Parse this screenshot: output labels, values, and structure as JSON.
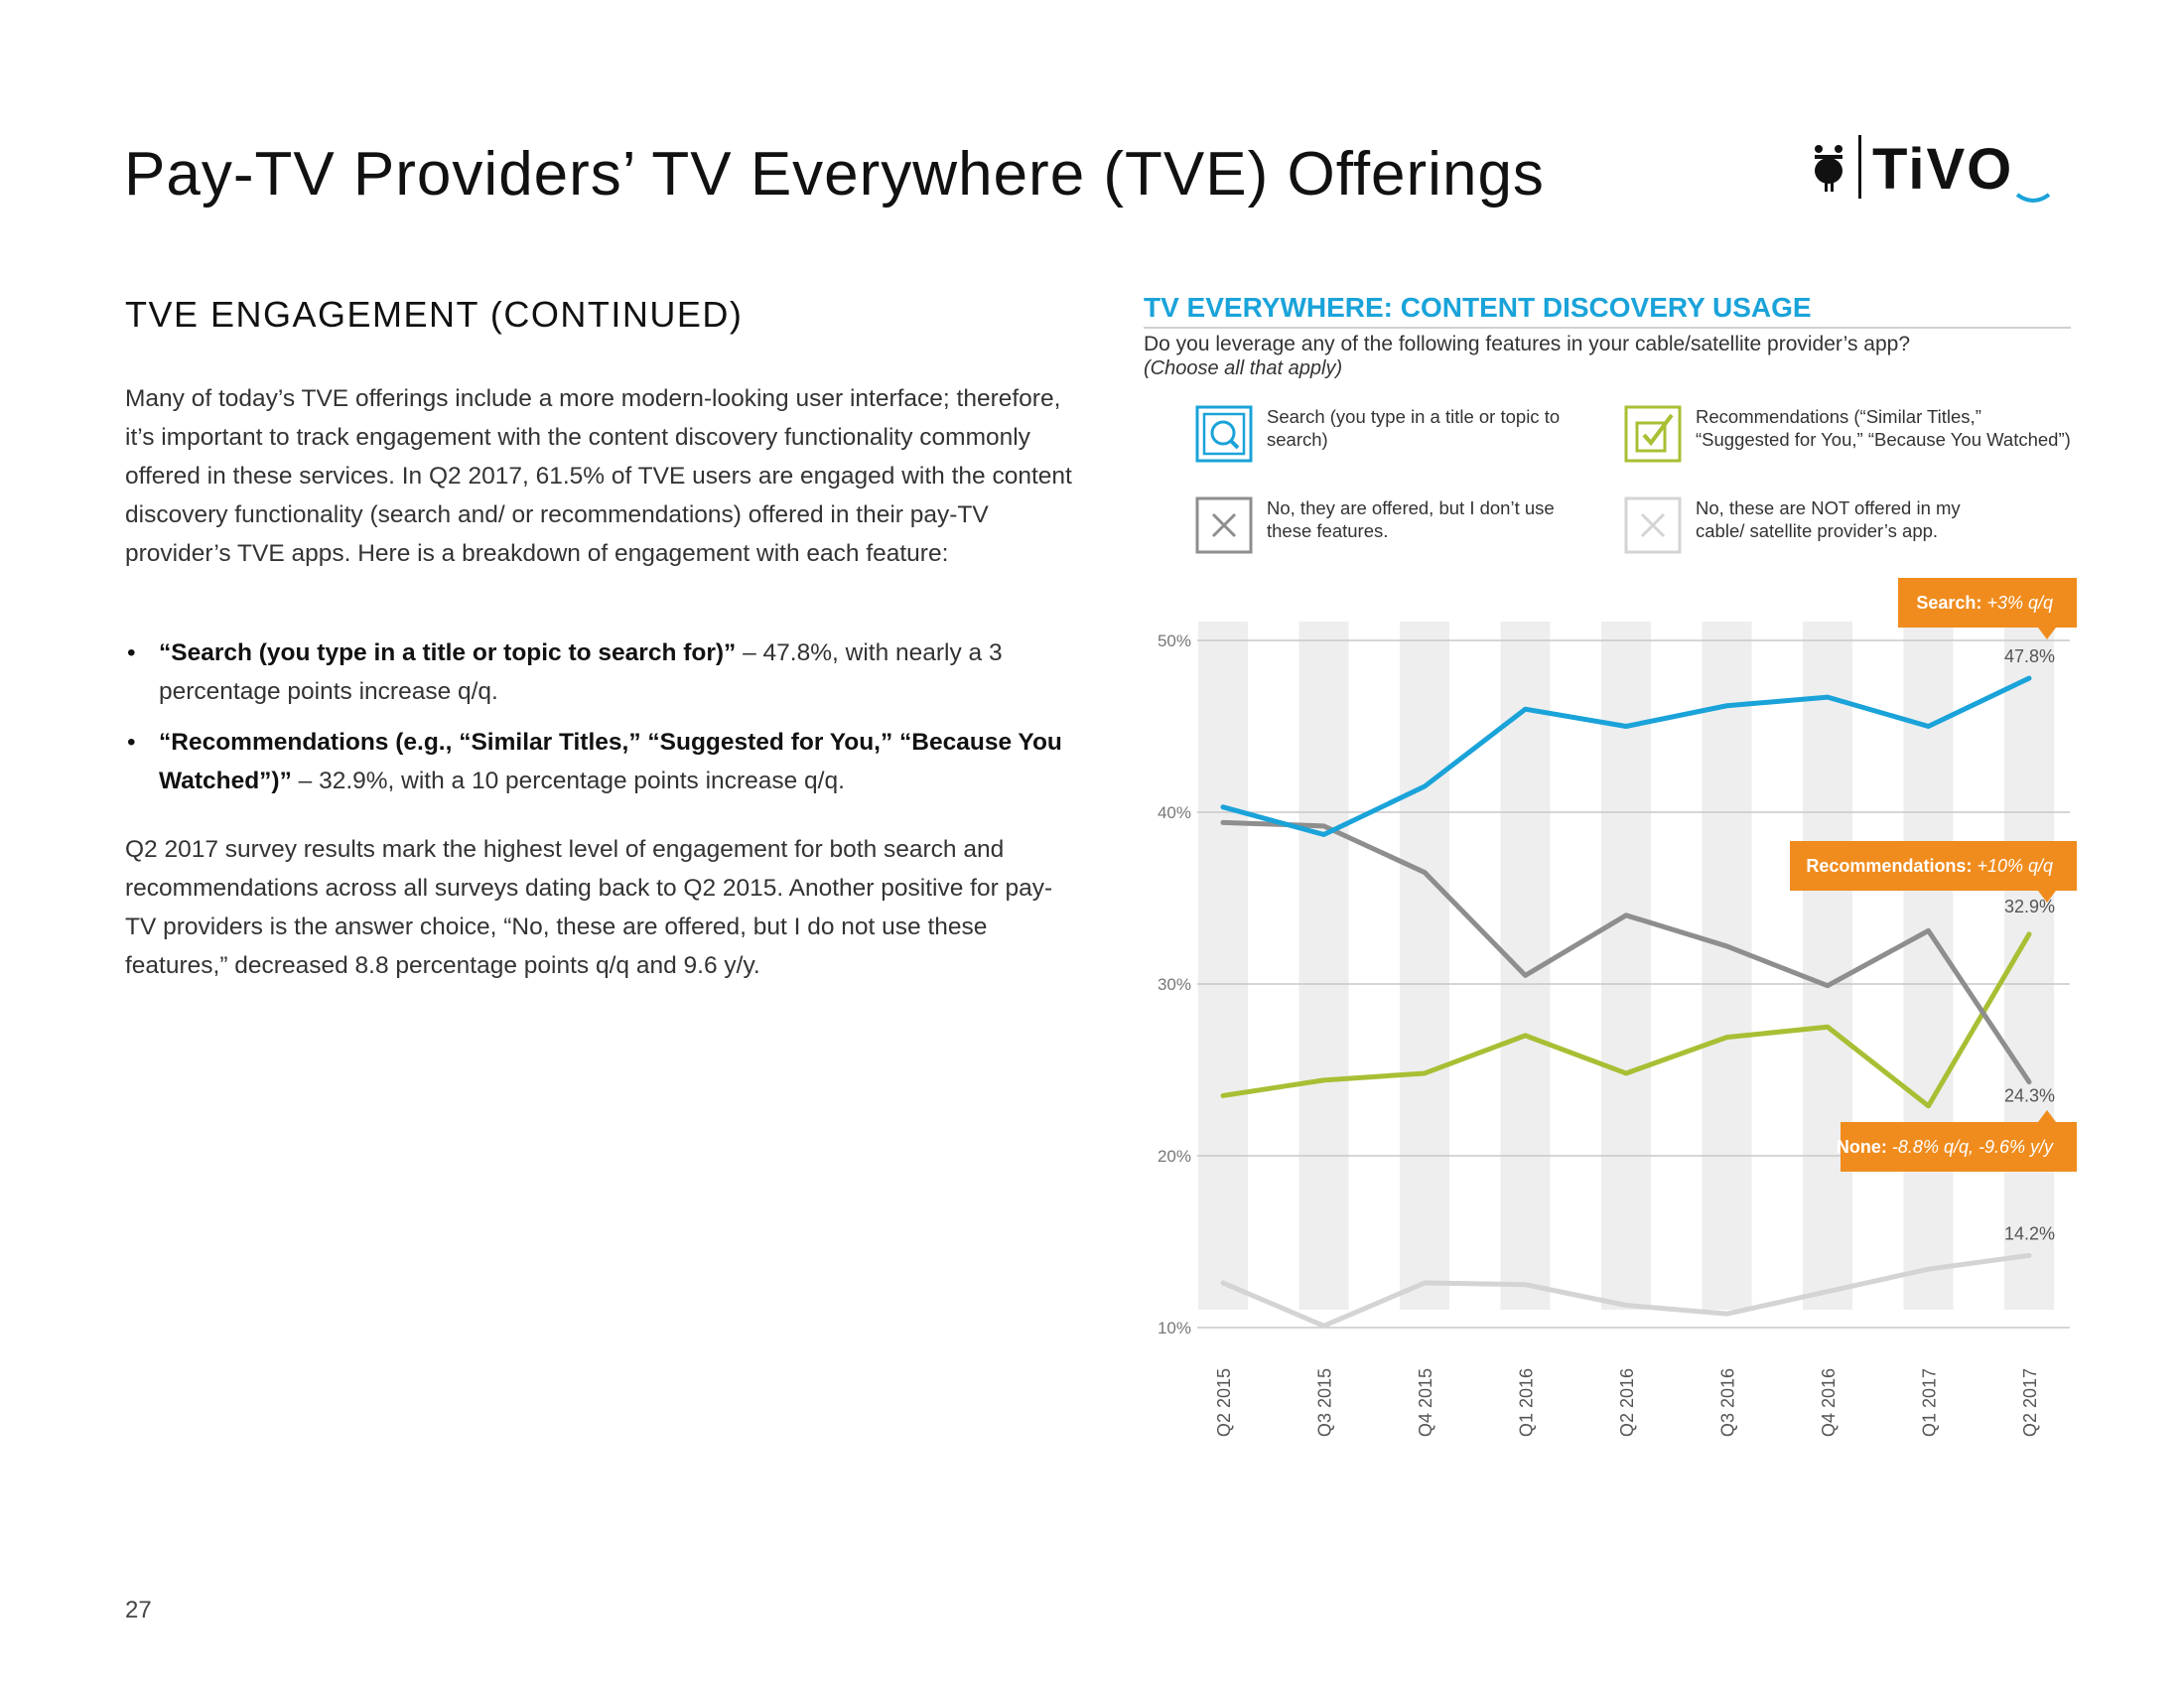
{
  "page": {
    "title": "Pay-TV Providers’ TV Everywhere (TVE) Offerings",
    "page_number": "27",
    "logo_text": "TiVO"
  },
  "left": {
    "section_title": "TVE ENGAGEMENT (CONTINUED)",
    "intro": "Many of today’s TVE offerings include a more modern-looking user interface; therefore, it’s important to track engagement with the content discovery functionality commonly offered in these services. In Q2 2017, 61.5% of TVE users are engaged with the content discovery functionality (search and/ or recommendations) offered in their pay-TV provider’s TVE apps. Here is a breakdown of engagement with each feature:",
    "bullets": [
      {
        "bold": "“Search (you type in a title or topic to search for)”",
        "text": " – 47.8%, with nearly a 3 percentage points increase q/q."
      },
      {
        "bold": "“Recommendations (e.g., “Similar Titles,” “Suggested for You,” “Because You Watched”)”",
        "text": " – 32.9%, with a 10 percentage points increase q/q."
      }
    ],
    "closing": "Q2 2017 survey results mark the highest level of engagement for both search and recommendations across all surveys dating back to Q2 2015. Another positive for pay-TV providers is the answer choice, “No, these are offered, but I do not use these features,” decreased 8.8 percentage points q/q and 9.6 y/y."
  },
  "legend": [
    {
      "key": "search",
      "icon": "search-icon",
      "text": "Search (you type in a title or topic to search)"
    },
    {
      "key": "recommendations",
      "icon": "checkbox-icon",
      "text": "Recommendations (“Similar Titles,” “Suggested for You,” “Because You Watched”)"
    },
    {
      "key": "none",
      "icon": "x-box-icon",
      "text": "No, they are offered, but I don’t use these features."
    },
    {
      "key": "not_offered",
      "icon": "x-box-light-icon",
      "text": "No, these are NOT offered in my cable/ satellite provider’s app."
    }
  ],
  "colors": {
    "search": "#1aa3d9",
    "recommendations": "#a8bf34",
    "none": "#8e8e8e",
    "not_offered": "#d4d4d4",
    "callout": "#f08c1e",
    "band": "#eeeeee",
    "grid": "#c8c8c8"
  },
  "chart_data": {
    "type": "line",
    "title": "TV EVERYWHERE: CONTENT DISCOVERY USAGE",
    "question": "Do you leverage any of the following features in your cable/satellite provider’s app?",
    "note": "(Choose all that apply)",
    "categories": [
      "Q2 2015",
      "Q3 2015",
      "Q4 2015",
      "Q1 2016",
      "Q2 2016",
      "Q3 2016",
      "Q4 2016",
      "Q1 2017",
      "Q2 2017"
    ],
    "ylim": [
      10,
      50
    ],
    "yticks": [
      10,
      20,
      30,
      40,
      50
    ],
    "ytick_labels": [
      "10%",
      "20%",
      "30%",
      "40%",
      "50%"
    ],
    "series": [
      {
        "key": "search",
        "name": "Search",
        "values": [
          40.3,
          38.7,
          41.5,
          46.0,
          45.0,
          46.2,
          46.7,
          45.0,
          47.8
        ],
        "end_label": "47.8%"
      },
      {
        "key": "none",
        "name": "No, they are offered, but I don’t use these features",
        "values": [
          39.4,
          39.2,
          36.5,
          30.5,
          34.0,
          32.2,
          29.9,
          33.1,
          24.3
        ],
        "end_label": "24.3%"
      },
      {
        "key": "recommendations",
        "name": "Recommendations",
        "values": [
          23.5,
          24.4,
          24.8,
          27.0,
          24.8,
          26.9,
          27.5,
          22.9,
          32.9
        ],
        "end_label": "32.9%"
      },
      {
        "key": "not_offered",
        "name": "Not offered",
        "values": [
          12.6,
          10.1,
          12.6,
          12.5,
          11.3,
          10.8,
          12.1,
          13.4,
          14.2
        ],
        "end_label": "14.2%"
      }
    ],
    "callouts": [
      {
        "series": "search",
        "label": "Search:",
        "detail": "+3% q/q"
      },
      {
        "series": "recommendations",
        "label": "Recommendations:",
        "detail": "+10% q/q"
      },
      {
        "series": "none",
        "label": "None:",
        "detail": "-8.8% q/q, -9.6% y/y"
      }
    ]
  }
}
